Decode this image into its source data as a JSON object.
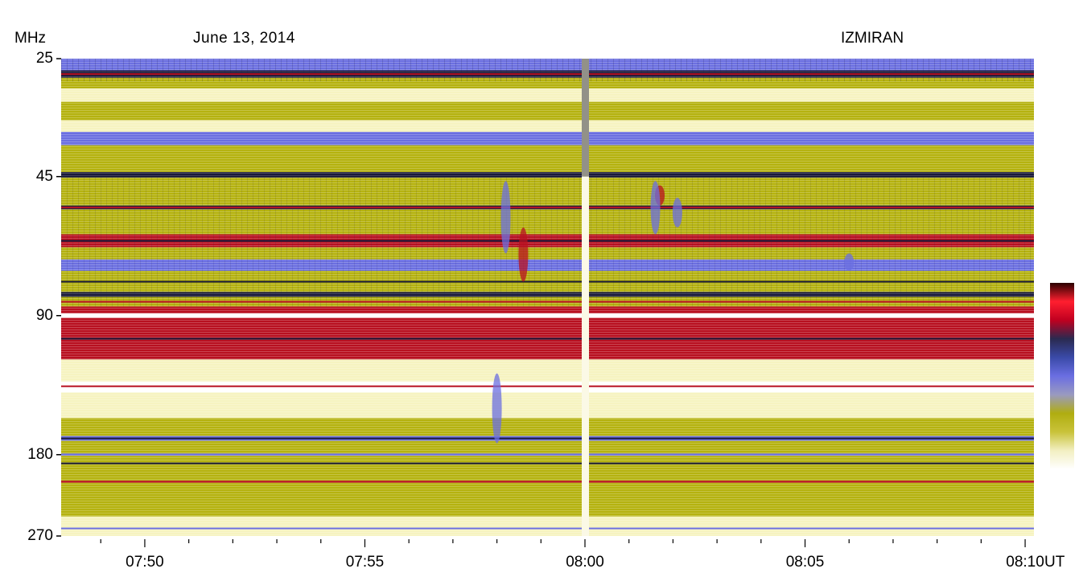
{
  "header": {
    "y_unit": "MHz",
    "date": "June 13, 2014",
    "station": "IZMIRAN",
    "x_unit": "UT"
  },
  "colors": {
    "yellow_olive": "#b5b20f",
    "pale_yellow": "#f6f3c0",
    "blue": "#6b6fe0",
    "dark_navy": "#1a1a3a",
    "red": "#b81020",
    "white": "#ffffff"
  },
  "colorbar": {
    "stops": [
      "#ffffff",
      "#f2efc2",
      "#c9c33a",
      "#b0ad10",
      "#9a9ac0",
      "#6a6ee2",
      "#3a4aa8",
      "#2a2a50",
      "#c00020",
      "#ff1f2f",
      "#2a0000"
    ]
  },
  "chart_data": {
    "type": "heatmap",
    "title": "June 13, 2014",
    "subtitle": "IZMIRAN",
    "ylabel": "MHz",
    "xlabel": "UT",
    "y_scale": "log",
    "y_ticks": [
      "25",
      "45",
      "90",
      "180",
      "270"
    ],
    "y_tick_values": [
      25,
      45,
      90,
      180,
      270
    ],
    "ylim": [
      25,
      270
    ],
    "x_ticks": [
      "07:50",
      "07:55",
      "08:00",
      "08:05",
      "08:10"
    ],
    "x_tick_minutes": [
      470,
      475,
      480,
      485,
      490
    ],
    "xlim_minutes": [
      468.1,
      490.2
    ],
    "minor_tick_interval_minutes": 1,
    "data_gap_minutes": 480.0,
    "bands": [
      {
        "f1": 25.0,
        "f2": 26.5,
        "color": "blue"
      },
      {
        "f1": 26.5,
        "f2": 27.5,
        "color": "dark_navy"
      },
      {
        "f1": 27.5,
        "f2": 29.0,
        "color": "yellow_olive"
      },
      {
        "f1": 29.0,
        "f2": 31.0,
        "color": "pale_yellow"
      },
      {
        "f1": 31.0,
        "f2": 34.0,
        "color": "yellow_olive"
      },
      {
        "f1": 34.0,
        "f2": 36.0,
        "color": "pale_yellow"
      },
      {
        "f1": 36.0,
        "f2": 38.5,
        "color": "blue"
      },
      {
        "f1": 38.5,
        "f2": 44.0,
        "color": "yellow_olive"
      },
      {
        "f1": 44.0,
        "f2": 45.2,
        "color": "dark_navy"
      },
      {
        "f1": 45.2,
        "f2": 52.0,
        "color": "yellow_olive"
      },
      {
        "f1": 52.0,
        "f2": 53.0,
        "color": "dark_navy"
      },
      {
        "f1": 53.0,
        "f2": 60.0,
        "color": "yellow_olive"
      },
      {
        "f1": 60.0,
        "f2": 64.0,
        "color": "red"
      },
      {
        "f1": 64.0,
        "f2": 68.0,
        "color": "yellow_olive"
      },
      {
        "f1": 68.0,
        "f2": 72.0,
        "color": "blue"
      },
      {
        "f1": 72.0,
        "f2": 80.0,
        "color": "yellow_olive"
      },
      {
        "f1": 80.0,
        "f2": 82.0,
        "color": "dark_navy"
      },
      {
        "f1": 82.0,
        "f2": 86.0,
        "color": "yellow_olive"
      },
      {
        "f1": 86.0,
        "f2": 89.0,
        "color": "red"
      },
      {
        "f1": 89.0,
        "f2": 91.0,
        "color": "white"
      },
      {
        "f1": 91.0,
        "f2": 112.0,
        "color": "red"
      },
      {
        "f1": 112.0,
        "f2": 125.0,
        "color": "pale_yellow"
      },
      {
        "f1": 125.0,
        "f2": 132.0,
        "color": "white"
      },
      {
        "f1": 132.0,
        "f2": 150.0,
        "color": "pale_yellow"
      },
      {
        "f1": 150.0,
        "f2": 164.0,
        "color": "yellow_olive"
      },
      {
        "f1": 164.0,
        "f2": 168.0,
        "color": "blue"
      },
      {
        "f1": 168.0,
        "f2": 179.0,
        "color": "yellow_olive"
      },
      {
        "f1": 179.0,
        "f2": 181.0,
        "color": "blue"
      },
      {
        "f1": 181.0,
        "f2": 205.0,
        "color": "yellow_olive"
      },
      {
        "f1": 205.0,
        "f2": 207.0,
        "color": "red"
      },
      {
        "f1": 207.0,
        "f2": 245.0,
        "color": "yellow_olive"
      },
      {
        "f1": 245.0,
        "f2": 270.0,
        "color": "pale_yellow"
      }
    ],
    "lines": [
      {
        "f": 27.0,
        "color": "red"
      },
      {
        "f": 45.0,
        "color": "dark_navy"
      },
      {
        "f": 52.5,
        "color": "red"
      },
      {
        "f": 62.0,
        "color": "dark_navy"
      },
      {
        "f": 76.0,
        "color": "dark_navy"
      },
      {
        "f": 84.0,
        "color": "red"
      },
      {
        "f": 101.0,
        "color": "dark_navy"
      },
      {
        "f": 128.0,
        "color": "red"
      },
      {
        "f": 166.0,
        "color": "dark_navy"
      },
      {
        "f": 188.0,
        "color": "dark_navy"
      },
      {
        "f": 206.0,
        "color": "red"
      },
      {
        "f": 260.0,
        "color": "blue"
      }
    ],
    "features": [
      {
        "t": 478.2,
        "f1": 46.0,
        "f2": 66.0,
        "color": "blue"
      },
      {
        "t": 478.6,
        "f1": 58.0,
        "f2": 76.0,
        "color": "red"
      },
      {
        "t": 481.7,
        "f1": 47.0,
        "f2": 52.0,
        "color": "red"
      },
      {
        "t": 481.6,
        "f1": 46.0,
        "f2": 60.0,
        "color": "blue"
      },
      {
        "t": 482.1,
        "f1": 50.0,
        "f2": 58.0,
        "color": "blue"
      },
      {
        "t": 478.0,
        "f1": 120.0,
        "f2": 170.0,
        "color": "blue"
      },
      {
        "t": 486.0,
        "f1": 66.0,
        "f2": 72.0,
        "color": "blue"
      }
    ]
  }
}
